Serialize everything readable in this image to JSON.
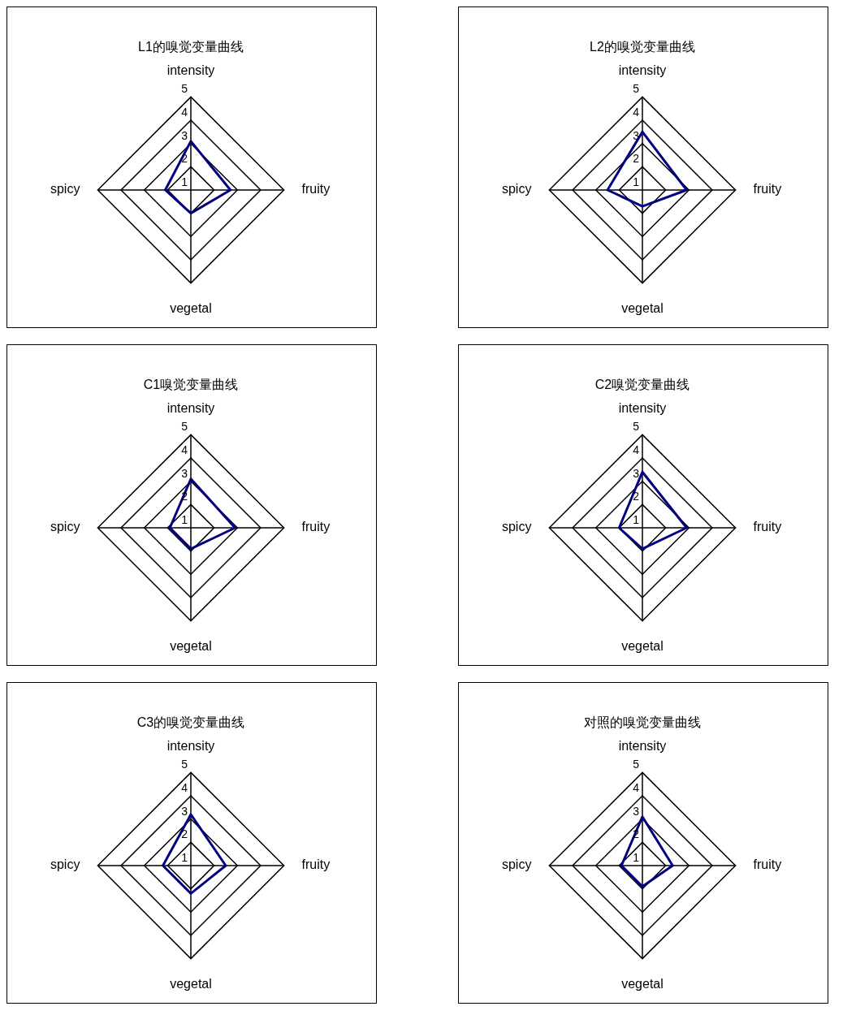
{
  "chart_data": [
    {
      "type": "radar",
      "title": "L1的嗅觉变量曲线",
      "categories": [
        "intensity",
        "fruity",
        "vegetal",
        "spicy"
      ],
      "series": [
        {
          "color": "#000080",
          "values": [
            3.1,
            2.7,
            2.0,
            2.1
          ]
        }
      ],
      "ylim": [
        1,
        5
      ],
      "yticks": [
        1,
        2,
        3,
        4,
        5
      ],
      "grid": true,
      "legend": false,
      "marker": "none"
    },
    {
      "type": "radar",
      "title": "L2的嗅觉变量曲线",
      "categories": [
        "intensity",
        "fruity",
        "vegetal",
        "spicy"
      ],
      "series": [
        {
          "color": "#000080",
          "values": [
            3.5,
            2.9,
            1.7,
            2.5
          ]
        }
      ],
      "ylim": [
        1,
        5
      ],
      "yticks": [
        1,
        2,
        3,
        4,
        5
      ],
      "grid": true,
      "legend": false,
      "marker": "none"
    },
    {
      "type": "radar",
      "title": "C1嗅觉变量曲线",
      "categories": [
        "intensity",
        "fruity",
        "vegetal",
        "spicy"
      ],
      "series": [
        {
          "color": "#000080",
          "values": [
            3.1,
            2.9,
            1.9,
            1.9
          ]
        }
      ],
      "ylim": [
        1,
        5
      ],
      "yticks": [
        1,
        2,
        3,
        4,
        5
      ],
      "grid": true,
      "legend": false,
      "marker": "none"
    },
    {
      "type": "radar",
      "title": "C2嗅觉变量曲线",
      "categories": [
        "intensity",
        "fruity",
        "vegetal",
        "spicy"
      ],
      "series": [
        {
          "color": "#000080",
          "values": [
            3.4,
            2.9,
            1.9,
            2.0
          ]
        }
      ],
      "ylim": [
        1,
        5
      ],
      "yticks": [
        1,
        2,
        3,
        4,
        5
      ],
      "grid": true,
      "legend": false,
      "marker": "none"
    },
    {
      "type": "radar",
      "title": "C3的嗅觉变量曲线",
      "categories": [
        "intensity",
        "fruity",
        "vegetal",
        "spicy"
      ],
      "series": [
        {
          "color": "#000080",
          "values": [
            3.2,
            2.5,
            2.2,
            2.2
          ]
        }
      ],
      "ylim": [
        1,
        5
      ],
      "yticks": [
        1,
        2,
        3,
        4,
        5
      ],
      "grid": true,
      "legend": false,
      "marker": "none"
    },
    {
      "type": "radar",
      "title": "对照的嗅觉变量曲线",
      "categories": [
        "intensity",
        "fruity",
        "vegetal",
        "spicy"
      ],
      "series": [
        {
          "color": "#000080",
          "values": [
            3.1,
            2.3,
            1.9,
            1.9
          ]
        }
      ],
      "ylim": [
        1,
        5
      ],
      "yticks": [
        1,
        2,
        3,
        4,
        5
      ],
      "grid": true,
      "legend": false,
      "marker": "none"
    }
  ]
}
